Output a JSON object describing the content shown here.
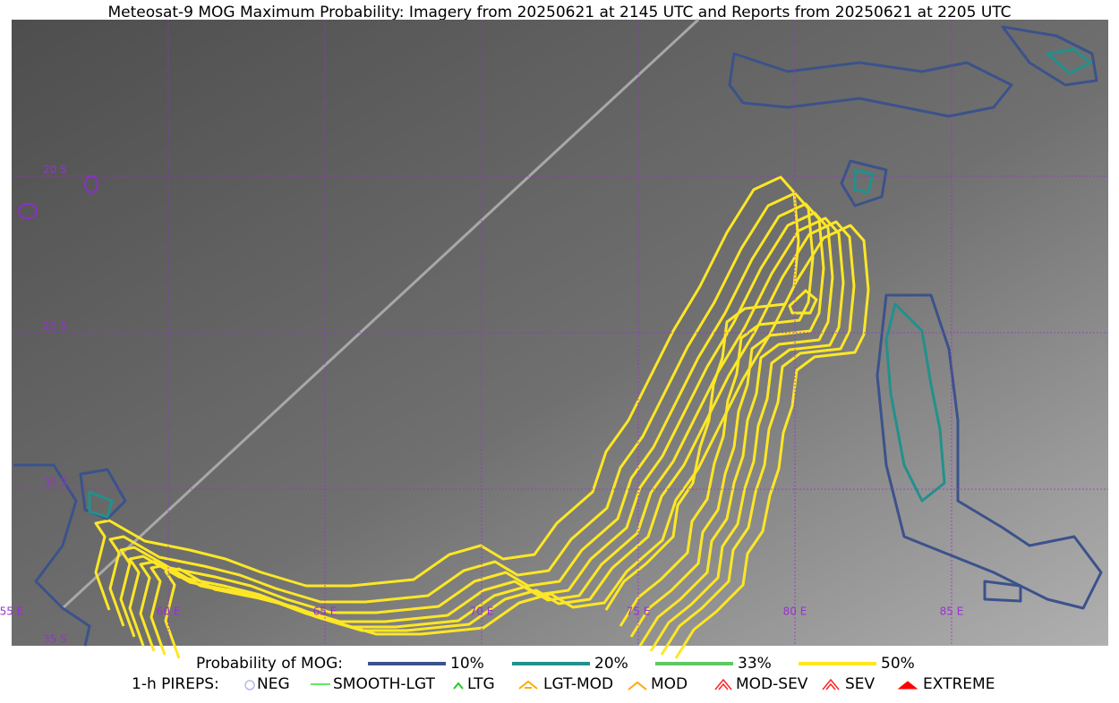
{
  "title": "Meteosat-9 MOG Maximum Probability: Imagery from 20250621 at 2145 UTC and Reports from 20250621 at 2205 UTC",
  "map": {
    "lat_labels": [
      "20 S",
      "25 S",
      "30 S",
      "35 S"
    ],
    "lon_labels": [
      "55 E",
      "60 E",
      "65 E",
      "70 E",
      "75 E",
      "80 E",
      "85 E"
    ]
  },
  "legend": {
    "title": "Probability of MOG:",
    "levels": [
      {
        "label": "10%",
        "color": "#3b528b"
      },
      {
        "label": "20%",
        "color": "#21918c"
      },
      {
        "label": "33%",
        "color": "#5ec962"
      },
      {
        "label": "50%",
        "color": "#fde725"
      }
    ]
  },
  "pireps": {
    "title": "1-h PIREPS:",
    "items": [
      {
        "label": "NEG",
        "color": "#b8b8f0"
      },
      {
        "label": "SMOOTH-LGT",
        "color": "#33dd33"
      },
      {
        "label": "LTG",
        "color": "#22cc22"
      },
      {
        "label": "LGT-MOD",
        "color": "#ffaa00"
      },
      {
        "label": "MOD",
        "color": "#ffaa00"
      },
      {
        "label": "MOD-SEV",
        "color": "#ff2222"
      },
      {
        "label": "SEV",
        "color": "#ff2222"
      },
      {
        "label": "EXTREME",
        "color": "#ff0000"
      }
    ]
  }
}
